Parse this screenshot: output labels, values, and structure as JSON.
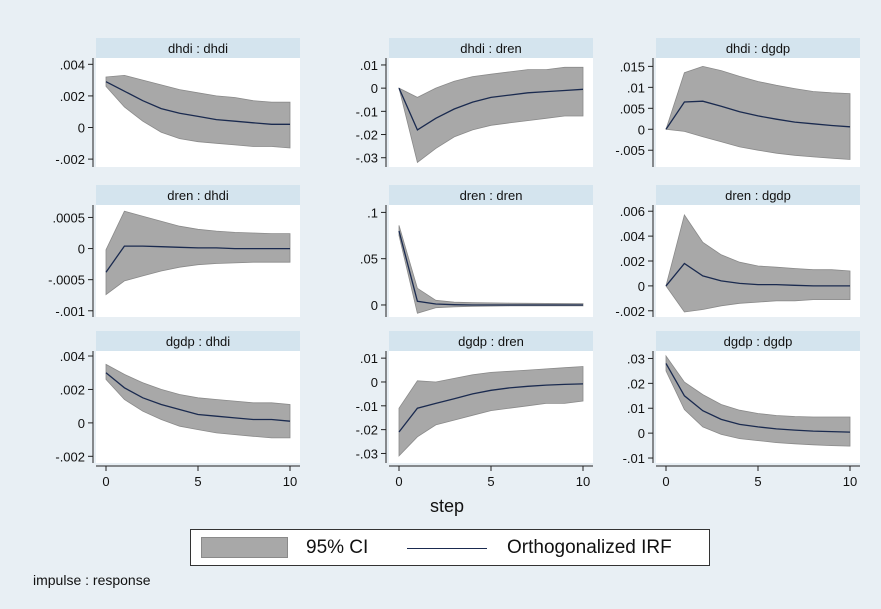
{
  "chart_data": {
    "type": "line",
    "xlabel": "step",
    "note": "impulse : response",
    "x": [
      0,
      1,
      2,
      3,
      4,
      5,
      6,
      7,
      8,
      9,
      10
    ],
    "xticks": [
      0,
      5,
      10
    ],
    "xlim": [
      0,
      10
    ],
    "legend": {
      "placement": "bottom-center",
      "ci_label": "95% CI",
      "line_label": "Orthogonalized IRF"
    },
    "colors": {
      "ci_fill": "#a8a8a8",
      "ci_edge": "#8a8a8a",
      "irf_line": "#1a2a4f",
      "panel_header": "#d4e4ee",
      "background": "#e8eff4"
    },
    "panels": [
      {
        "title": "dhdi : dhdi",
        "yticks": [
          "-.002",
          "0",
          ".002",
          ".004"
        ],
        "yvals": [
          -0.002,
          0,
          0.002,
          0.004
        ],
        "ylim": [
          -0.0025,
          0.0044
        ],
        "irf": [
          0.0029,
          0.0023,
          0.0017,
          0.0012,
          0.0009,
          0.0007,
          0.0005,
          0.0004,
          0.0003,
          0.0002,
          0.0002
        ],
        "lower": [
          0.0026,
          0.0013,
          0.0004,
          -0.0003,
          -0.0007,
          -0.0009,
          -0.001,
          -0.0011,
          -0.0012,
          -0.0012,
          -0.0013
        ],
        "upper": [
          0.0032,
          0.0033,
          0.003,
          0.0027,
          0.0024,
          0.0022,
          0.002,
          0.0019,
          0.0017,
          0.0016,
          0.0016
        ]
      },
      {
        "title": "dhdi : dren",
        "yticks": [
          "-.03",
          "-.02",
          "-.01",
          "0",
          ".01"
        ],
        "yvals": [
          -0.03,
          -0.02,
          -0.01,
          0,
          0.01
        ],
        "ylim": [
          -0.034,
          0.013
        ],
        "irf": [
          0.0,
          -0.018,
          -0.013,
          -0.009,
          -0.006,
          -0.004,
          -0.003,
          -0.002,
          -0.0015,
          -0.001,
          -0.0005
        ],
        "lower": [
          0.0,
          -0.032,
          -0.026,
          -0.021,
          -0.018,
          -0.016,
          -0.015,
          -0.014,
          -0.013,
          -0.012,
          -0.012
        ],
        "upper": [
          0.0,
          -0.004,
          0.0,
          0.003,
          0.005,
          0.006,
          0.007,
          0.008,
          0.008,
          0.009,
          0.009
        ]
      },
      {
        "title": "dhdi : dgdp",
        "yticks": [
          "-.005",
          "0",
          ".005",
          ".01",
          ".015"
        ],
        "yvals": [
          -0.005,
          0,
          0.005,
          0.01,
          0.015
        ],
        "ylim": [
          -0.009,
          0.017
        ],
        "irf": [
          0.0,
          0.0065,
          0.0067,
          0.0055,
          0.0042,
          0.0032,
          0.0024,
          0.0017,
          0.0013,
          0.0009,
          0.0006
        ],
        "lower": [
          0.0,
          -0.0005,
          -0.0018,
          -0.003,
          -0.0042,
          -0.005,
          -0.0057,
          -0.0062,
          -0.0066,
          -0.0069,
          -0.0072
        ],
        "upper": [
          0.0,
          0.0135,
          0.015,
          0.014,
          0.0126,
          0.0114,
          0.0105,
          0.0097,
          0.009,
          0.0087,
          0.0085
        ]
      },
      {
        "title": "dren : dhdi",
        "yticks": [
          "-.001",
          "-.0005",
          "0",
          ".0005"
        ],
        "yvals": [
          -0.001,
          -0.0005,
          0,
          0.0005
        ],
        "ylim": [
          -0.0011,
          0.0007
        ],
        "irf": [
          -0.00038,
          4e-05,
          4e-05,
          3e-05,
          2e-05,
          1e-05,
          1e-05,
          0.0,
          0.0,
          0.0,
          0.0
        ],
        "lower": [
          -0.00074,
          -0.00052,
          -0.00044,
          -0.00036,
          -0.0003,
          -0.00026,
          -0.00024,
          -0.00023,
          -0.00022,
          -0.00022,
          -0.00022
        ],
        "upper": [
          -2e-05,
          0.0006,
          0.00052,
          0.00044,
          0.00036,
          0.00031,
          0.00028,
          0.00026,
          0.00025,
          0.00024,
          0.00024
        ]
      },
      {
        "title": "dren : dren",
        "yticks": [
          "0",
          ".05",
          ".1"
        ],
        "yvals": [
          0,
          0.05,
          0.1
        ],
        "ylim": [
          -0.013,
          0.108
        ],
        "irf": [
          0.08,
          0.004,
          0.001,
          0.0003,
          0.0,
          0.0,
          0.0,
          0.0,
          0.0,
          0.0,
          0.0
        ],
        "lower": [
          0.075,
          -0.009,
          -0.003,
          -0.002,
          -0.0015,
          -0.0012,
          -0.001,
          -0.001,
          -0.001,
          -0.001,
          -0.001
        ],
        "upper": [
          0.086,
          0.018,
          0.005,
          0.003,
          0.0025,
          0.0022,
          0.002,
          0.0018,
          0.0017,
          0.0016,
          0.0015
        ]
      },
      {
        "title": "dren : dgdp",
        "yticks": [
          "-.002",
          "0",
          ".002",
          ".004",
          ".006"
        ],
        "yvals": [
          -0.002,
          0,
          0.002,
          0.004,
          0.006
        ],
        "ylim": [
          -0.0025,
          0.0065
        ],
        "irf": [
          0.0,
          0.0018,
          0.0008,
          0.0004,
          0.0002,
          0.0001,
          0.0001,
          5e-05,
          0.0,
          0.0,
          0.0
        ],
        "lower": [
          0.0,
          -0.0021,
          -0.0019,
          -0.0016,
          -0.0014,
          -0.0013,
          -0.0012,
          -0.0012,
          -0.0011,
          -0.0011,
          -0.0011
        ],
        "upper": [
          0.0,
          0.0057,
          0.0035,
          0.0025,
          0.0019,
          0.0016,
          0.0015,
          0.0014,
          0.0013,
          0.0013,
          0.0012
        ]
      },
      {
        "title": "dgdp : dhdi",
        "yticks": [
          "-.002",
          "0",
          ".002",
          ".004"
        ],
        "yvals": [
          -0.002,
          0,
          0.002,
          0.004
        ],
        "ylim": [
          -0.0024,
          0.0043
        ],
        "irf": [
          0.003,
          0.0021,
          0.0015,
          0.0011,
          0.0008,
          0.0005,
          0.0004,
          0.0003,
          0.0002,
          0.0002,
          0.0001
        ],
        "lower": [
          0.0026,
          0.0014,
          0.0007,
          0.0002,
          -0.0002,
          -0.0004,
          -0.0006,
          -0.0007,
          -0.0008,
          -0.0009,
          -0.0009
        ],
        "upper": [
          0.0035,
          0.0029,
          0.0024,
          0.002,
          0.0017,
          0.0015,
          0.0014,
          0.0013,
          0.0012,
          0.0012,
          0.0011
        ]
      },
      {
        "title": "dgdp : dren",
        "yticks": [
          "-.03",
          "-.02",
          "-.01",
          "0",
          ".01"
        ],
        "yvals": [
          -0.03,
          -0.02,
          -0.01,
          0,
          0.01
        ],
        "ylim": [
          -0.034,
          0.013
        ],
        "irf": [
          -0.021,
          -0.011,
          -0.009,
          -0.007,
          -0.005,
          -0.0035,
          -0.0025,
          -0.0018,
          -0.0013,
          -0.001,
          -0.0008
        ],
        "lower": [
          -0.031,
          -0.023,
          -0.018,
          -0.016,
          -0.014,
          -0.012,
          -0.011,
          -0.01,
          -0.009,
          -0.009,
          -0.008
        ],
        "upper": [
          -0.011,
          0.0005,
          0.0,
          0.0015,
          0.003,
          0.004,
          0.0045,
          0.005,
          0.0055,
          0.006,
          0.0065
        ]
      },
      {
        "title": "dgdp : dgdp",
        "yticks": [
          "-.01",
          "0",
          ".01",
          ".02",
          ".03"
        ],
        "yvals": [
          -0.01,
          0,
          0.01,
          0.02,
          0.03
        ],
        "ylim": [
          -0.012,
          0.033
        ],
        "irf": [
          0.028,
          0.015,
          0.009,
          0.0055,
          0.0035,
          0.0025,
          0.0017,
          0.0012,
          0.0008,
          0.0006,
          0.0004
        ],
        "lower": [
          0.025,
          0.0095,
          0.0025,
          -0.0005,
          -0.0022,
          -0.003,
          -0.0038,
          -0.0043,
          -0.0047,
          -0.005,
          -0.0052
        ],
        "upper": [
          0.031,
          0.0205,
          0.0155,
          0.0115,
          0.0092,
          0.0079,
          0.0071,
          0.0067,
          0.0065,
          0.0065,
          0.0065
        ]
      }
    ]
  }
}
